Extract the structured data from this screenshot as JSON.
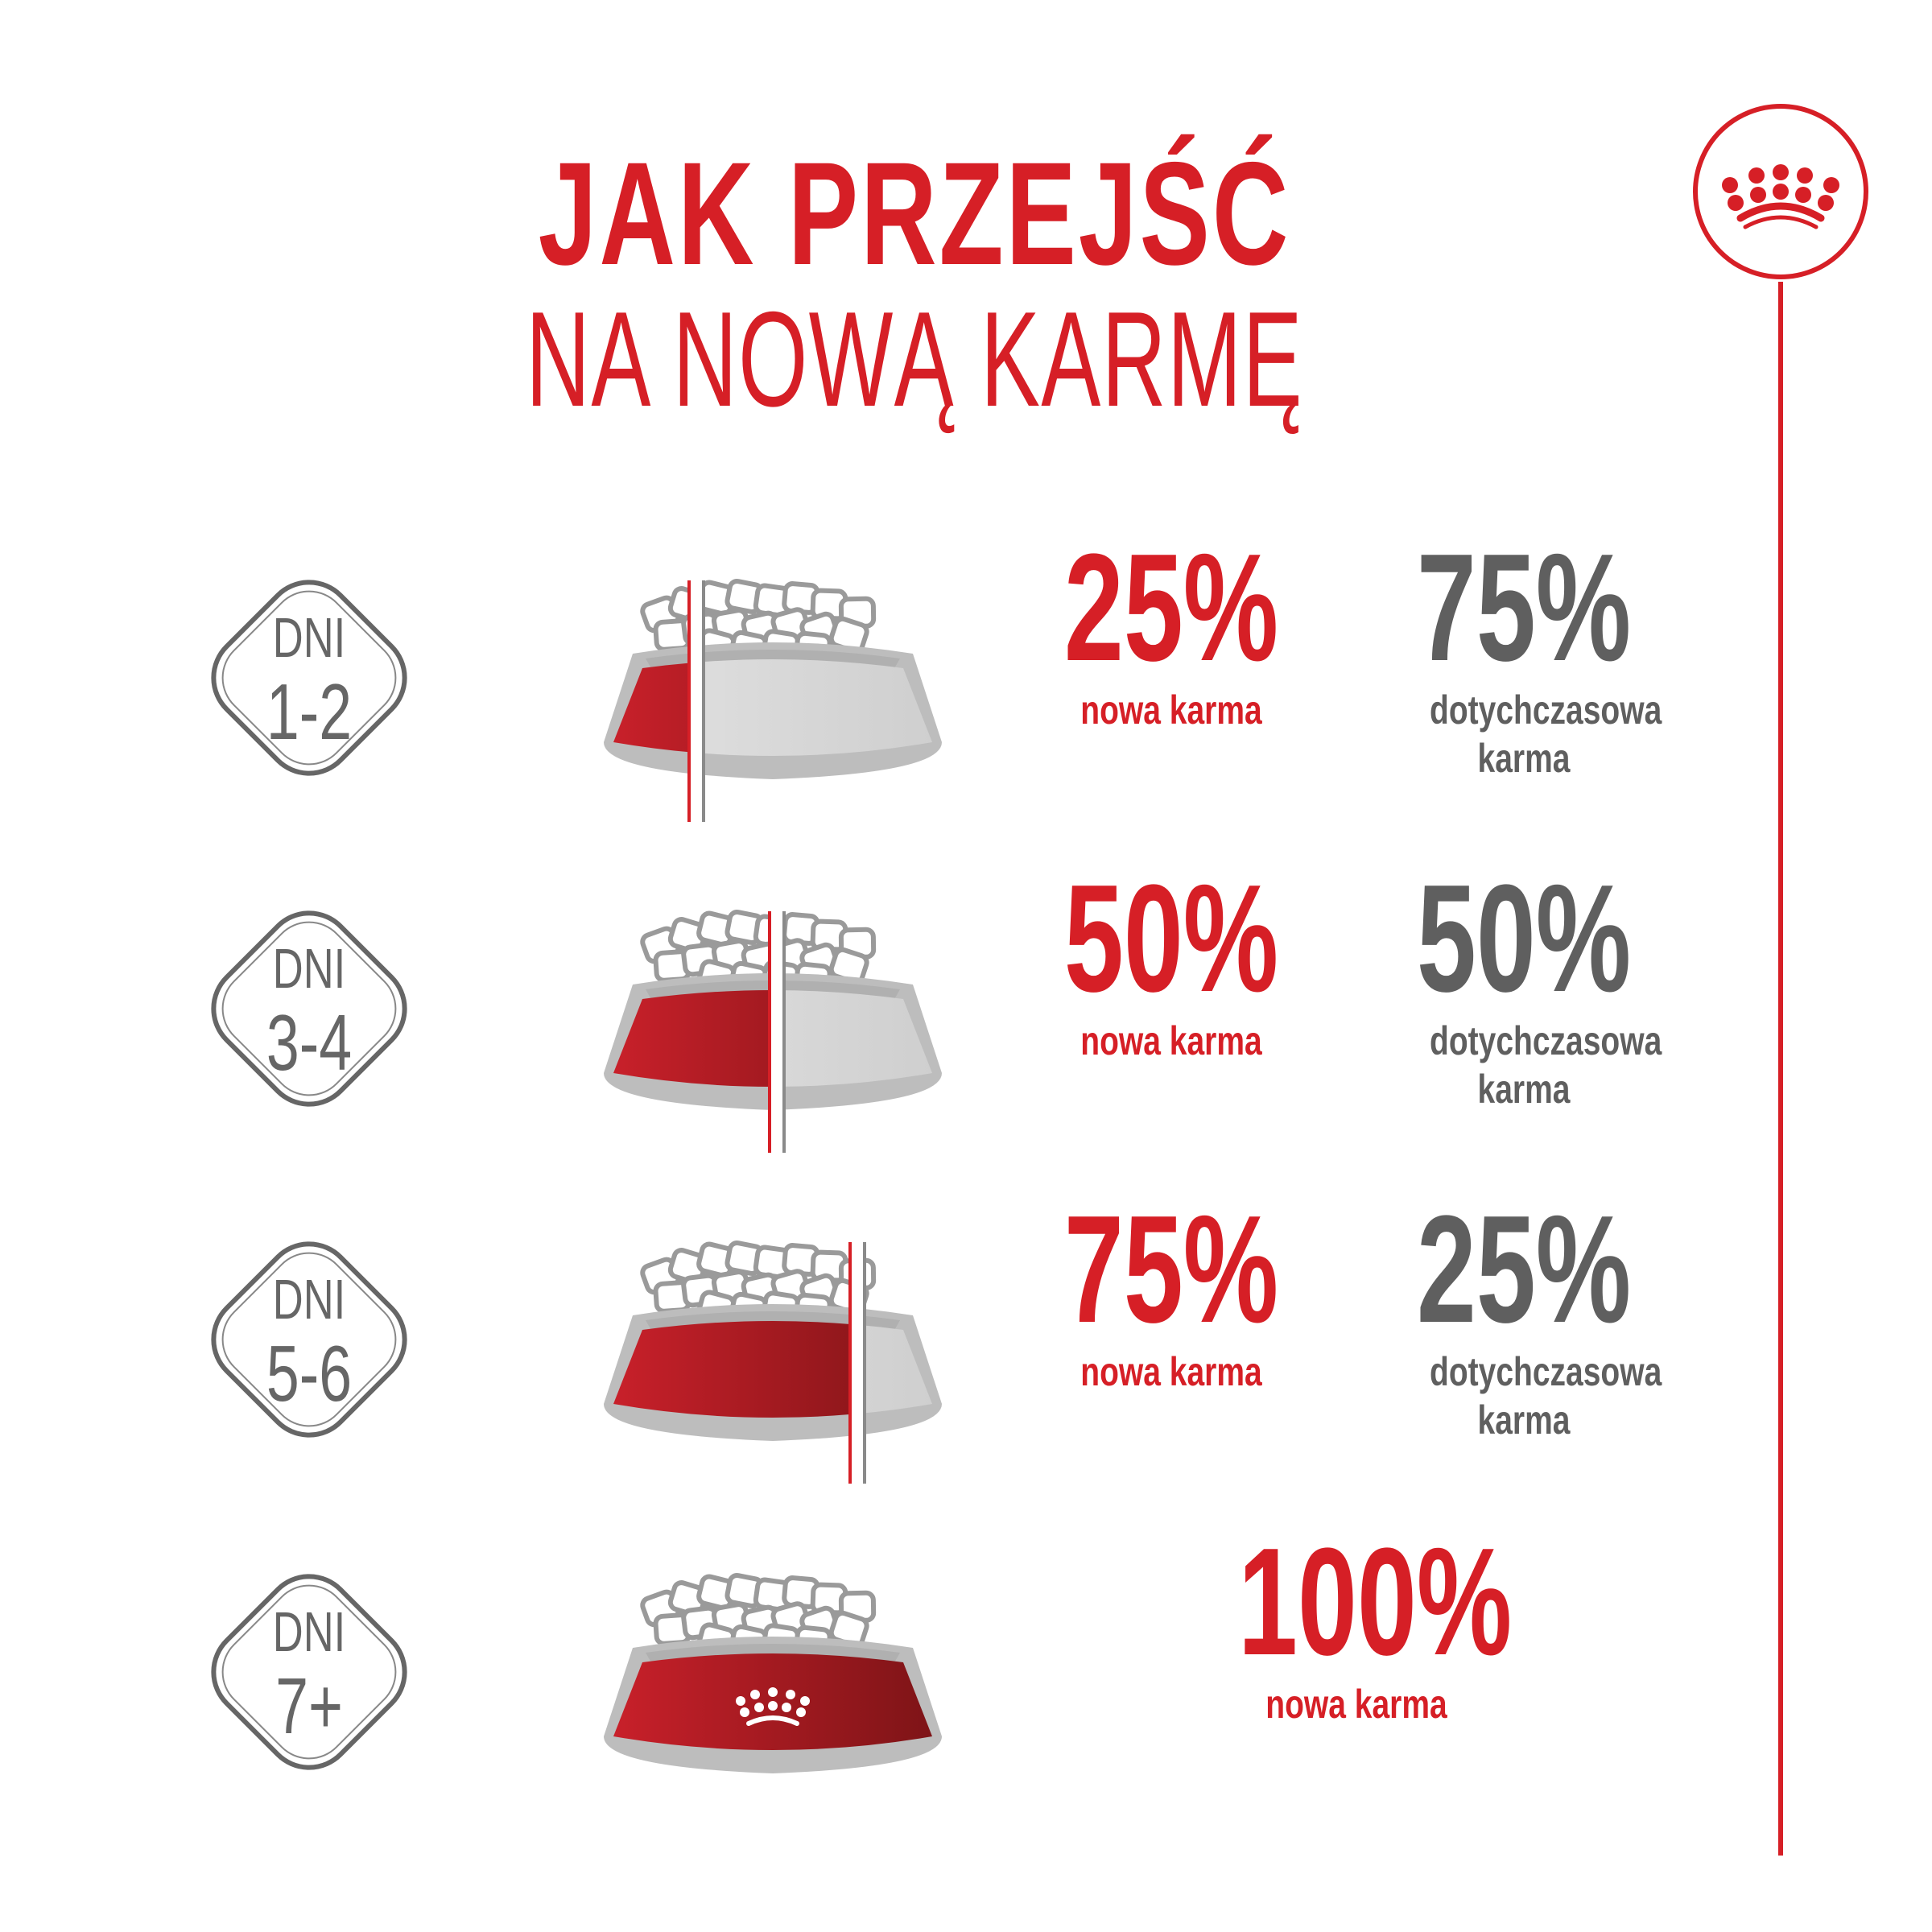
{
  "title": {
    "line1": "JAK PRZEJŚĆ",
    "line2": "NA NOWĄ KARMĘ"
  },
  "colors": {
    "brand_red": "#d61f26",
    "grey": "#5f5f5f",
    "bowl_grey": "#d9d9d9"
  },
  "logo": {
    "icon": "crown-icon"
  },
  "steps": [
    {
      "dni": "DNI",
      "days": "1-2",
      "new_pct": "25%",
      "new_label": "nowa karma",
      "old_pct": "75%",
      "old_label": "dotychczasowa karma",
      "new_fraction": 0.25
    },
    {
      "dni": "DNI",
      "days": "3-4",
      "new_pct": "50%",
      "new_label": "nowa karma",
      "old_pct": "50%",
      "old_label": "dotychczasowa karma",
      "new_fraction": 0.5
    },
    {
      "dni": "DNI",
      "days": "5-6",
      "new_pct": "75%",
      "new_label": "nowa karma",
      "old_pct": "25%",
      "old_label": "dotychczasowa karma",
      "new_fraction": 0.75
    },
    {
      "dni": "DNI",
      "days": "7+",
      "new_pct": "100%",
      "new_label": "nowa karma",
      "new_fraction": 1.0
    }
  ]
}
